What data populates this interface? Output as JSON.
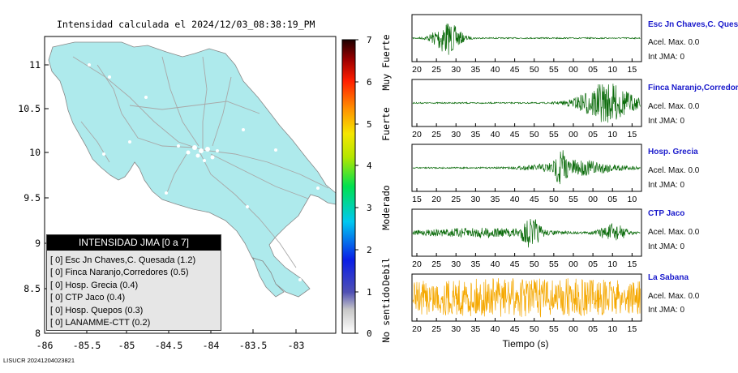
{
  "map": {
    "title": "Intensidad calculada el 2024/12/03_08:38:19_PM",
    "x_ticks": [
      "-86",
      "-85.5",
      "-85",
      "-84.5",
      "-84",
      "-83.5",
      "-83"
    ],
    "y_ticks": [
      "11",
      "10.5",
      "10",
      "9.5",
      "9",
      "8.5",
      "8"
    ],
    "land_color": "#aeeaec",
    "road_color": "#a8a8a8"
  },
  "colorbar": {
    "ticks": [
      "7",
      "6",
      "5",
      "4",
      "3",
      "2",
      "1",
      "0"
    ],
    "labels": [
      "Muy Fuerte",
      "Fuerte",
      "Moderado",
      "Debil",
      "No sentido"
    ]
  },
  "legend": {
    "title": "INTENSIDAD JMA [0 a 7]",
    "rows": [
      "[ 0]  Esc Jn Chaves,C. Quesada (1.2)",
      "[ 0]  Finca Naranjo,Corredores (0.5)",
      "[ 0]  Hosp. Grecia (0.4)",
      "[ 0]  CTP Jaco (0.4)",
      "[ 0]  Hosp. Quepos (0.3)",
      "[ 0]  LANAMME-CTT (0.2)"
    ]
  },
  "waveforms": [
    {
      "name": "Esc Jn Chaves,C. Ques",
      "acel": "Acel. Max. 0.0",
      "int": "Int JMA: 0",
      "ticks": [
        "20",
        "25",
        "30",
        "35",
        "40",
        "45",
        "50",
        "55",
        "00",
        "05",
        "10",
        "15"
      ],
      "color": "#0a6b0a"
    },
    {
      "name": "Finca Naranjo,Corredor",
      "acel": "Acel. Max. 0.0",
      "int": "Int JMA: 0",
      "ticks": [
        "20",
        "25",
        "30",
        "35",
        "40",
        "45",
        "50",
        "55",
        "00",
        "05",
        "10",
        "15"
      ],
      "color": "#0a6b0a"
    },
    {
      "name": "Hosp. Grecia",
      "acel": "Acel. Max. 0.0",
      "int": "Int JMA: 0",
      "ticks": [
        "15",
        "20",
        "25",
        "30",
        "35",
        "40",
        "45",
        "50",
        "55",
        "00",
        "05",
        "10"
      ],
      "color": "#0a6b0a"
    },
    {
      "name": "CTP Jaco",
      "acel": "Acel. Max. 0.0",
      "int": "Int JMA: 0",
      "ticks": [
        "20",
        "25",
        "30",
        "35",
        "40",
        "45",
        "50",
        "55",
        "00",
        "05",
        "10",
        "15"
      ],
      "color": "#0a6b0a"
    },
    {
      "name": "La Sabana",
      "acel": "Acel. Max. 0.0",
      "int": "Int JMA: 0",
      "ticks": [
        "20",
        "25",
        "30",
        "35",
        "40",
        "45",
        "50",
        "55",
        "00",
        "05",
        "10",
        "15"
      ],
      "color": "#f5a800"
    }
  ],
  "time_axis_label": "Tiempo (s)",
  "footer": "LISUCR 20241204023821"
}
